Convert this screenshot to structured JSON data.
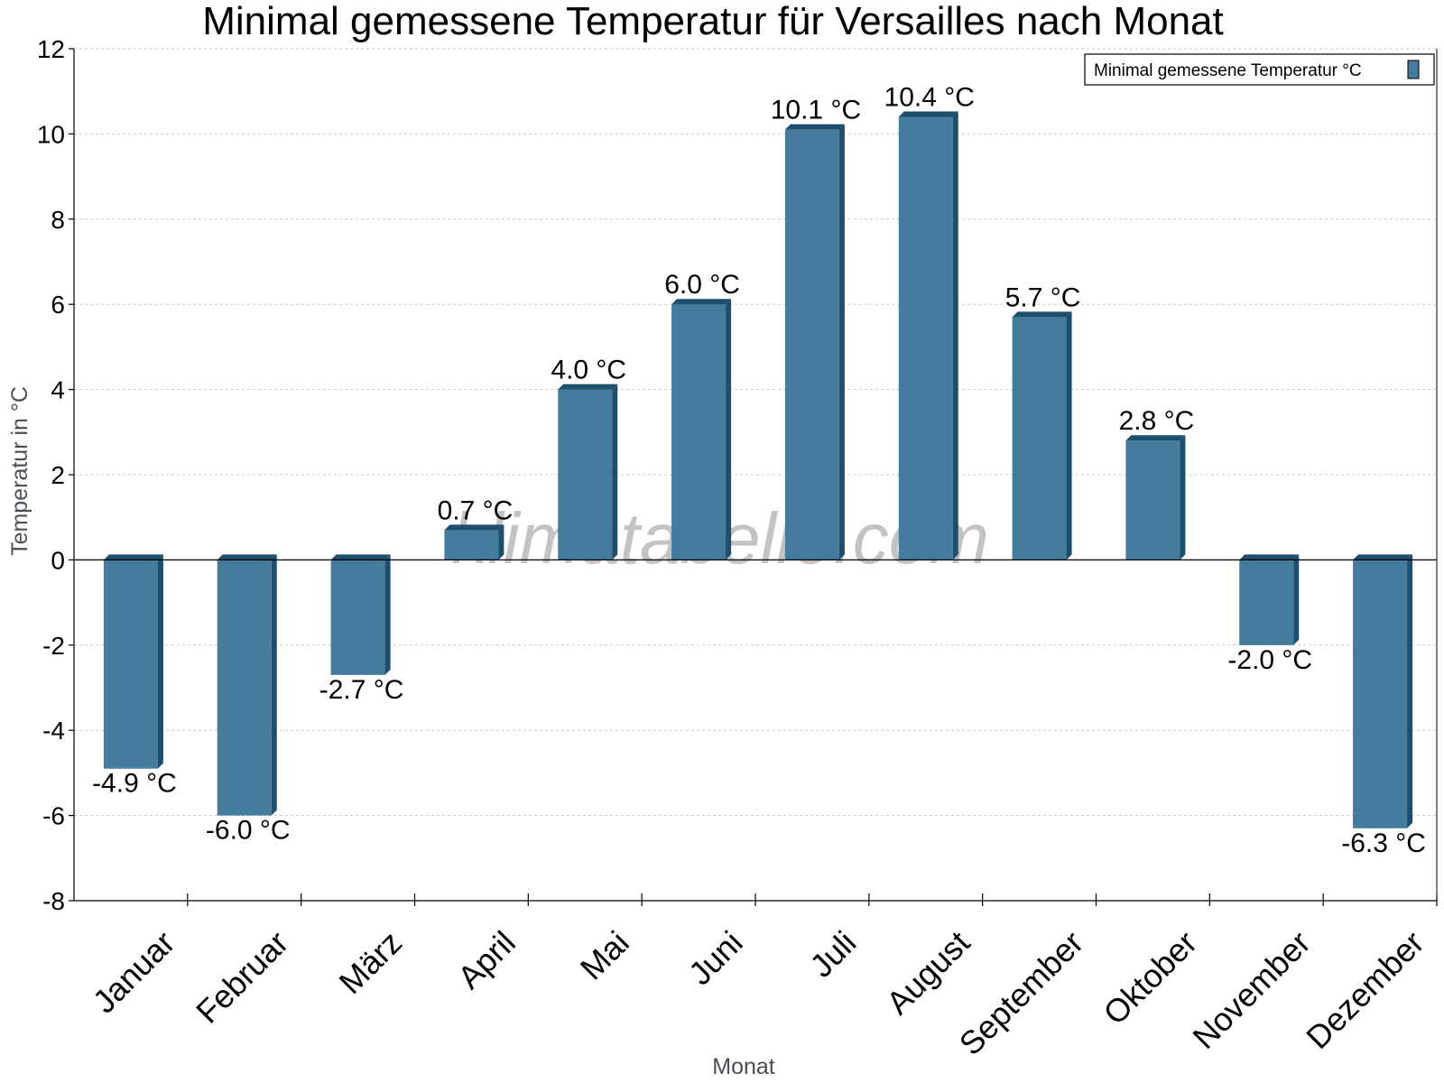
{
  "chart_data": {
    "type": "bar",
    "title": "Minimal gemessene Temperatur für Versailles nach Monat",
    "xlabel": "Monat",
    "ylabel": "Temperatur in °C",
    "ylim": [
      -8,
      12
    ],
    "yticks": [
      -8,
      -6,
      -4,
      -2,
      0,
      2,
      4,
      6,
      8,
      10,
      12
    ],
    "grid": true,
    "legend_position": "top-right",
    "categories": [
      "Januar",
      "Februar",
      "März",
      "April",
      "Mai",
      "Juni",
      "Juli",
      "August",
      "September",
      "Oktober",
      "November",
      "Dezember"
    ],
    "series": [
      {
        "name": "Minimal gemessene Temperatur °C",
        "values": [
          -4.9,
          -6.0,
          -2.7,
          0.7,
          4.0,
          6.0,
          10.1,
          10.4,
          5.7,
          2.8,
          -2.0,
          -6.3
        ],
        "labels": [
          "-4.9 °C",
          "-6.0 °C",
          "-2.7 °C",
          "0.7 °C",
          "4.0 °C",
          "6.0 °C",
          "10.1 °C",
          "10.4 °C",
          "5.7 °C",
          "2.8 °C",
          "-2.0 °C",
          "-6.3 °C"
        ]
      }
    ],
    "watermark": "klimatabelle.com",
    "colors": {
      "bar": "#457b9d",
      "bar_dark": "#1d4e6e",
      "grid": "#c8c8c8",
      "text": "#000000",
      "axis_label": "#4a4f55"
    }
  }
}
